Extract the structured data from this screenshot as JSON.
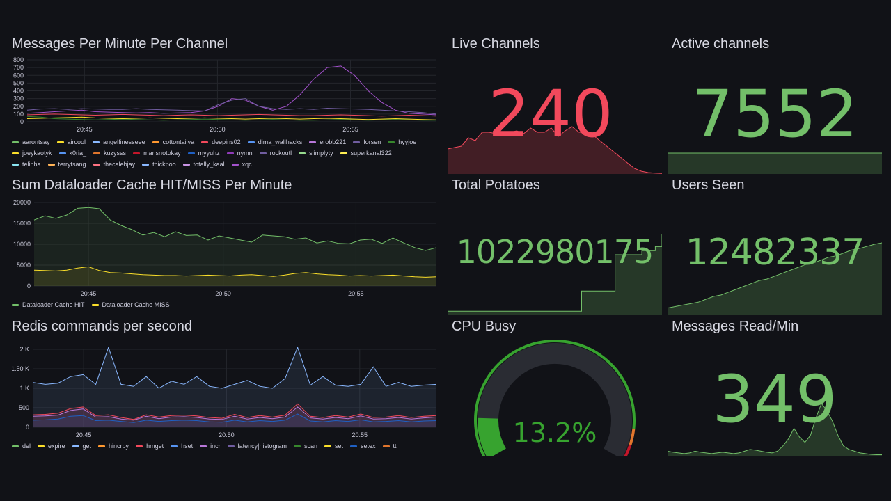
{
  "colors": {
    "background": "#111217",
    "grid": "#24262c",
    "text": "#ccccdc",
    "green": "#73bf69",
    "red": "#f2495c",
    "yellow": "#fade2a",
    "gauge_track": "#2a2c33",
    "gauge_green": "#37a32f",
    "gauge_orange": "#e0752d",
    "gauge_red": "#c4162a"
  },
  "panels": {
    "messages_per_minute": {
      "title": "Messages Per Minute Per Channel",
      "legend": [
        {
          "name": "aarontsay",
          "color": "#73bf69"
        },
        {
          "name": "aircool",
          "color": "#fade2a"
        },
        {
          "name": "angelfinesseee",
          "color": "#8ab8ff"
        },
        {
          "name": "cottontailva",
          "color": "#ff9830"
        },
        {
          "name": "deepins02",
          "color": "#f2495c"
        },
        {
          "name": "dima_wallhacks",
          "color": "#5794f2"
        },
        {
          "name": "erobb221",
          "color": "#b877d9"
        },
        {
          "name": "forsen",
          "color": "#705da0"
        },
        {
          "name": "hyyjoe",
          "color": "#37872d"
        },
        {
          "name": "joeykaotyk",
          "color": "#fade2a"
        },
        {
          "name": "k0ria_",
          "color": "#5794f2"
        },
        {
          "name": "kuzysss",
          "color": "#e0752d"
        },
        {
          "name": "marisnotokay",
          "color": "#c4162a"
        },
        {
          "name": "myyuhz",
          "color": "#1f60c4"
        },
        {
          "name": "nymn",
          "color": "#8f3bb8"
        },
        {
          "name": "rockoutl",
          "color": "#705da0"
        },
        {
          "name": "slimplyty",
          "color": "#96d98d"
        },
        {
          "name": "superkanal322",
          "color": "#ffee52"
        },
        {
          "name": "telinha",
          "color": "#8ae5f2"
        },
        {
          "name": "terrytsang",
          "color": "#ffb357"
        },
        {
          "name": "thecalebjay",
          "color": "#ff7383"
        },
        {
          "name": "thickpoo",
          "color": "#8ab8ff"
        },
        {
          "name": "totally_kaal",
          "color": "#ca95e5"
        },
        {
          "name": "xqc",
          "color": "#a352cc"
        }
      ]
    },
    "dataloader_cache": {
      "title": "Sum Dataloader Cache HIT/MISS Per Minute",
      "legend": [
        {
          "name": "Dataloader Cache HIT",
          "color": "#73bf69"
        },
        {
          "name": "Dataloader Cache MISS",
          "color": "#fade2a"
        }
      ]
    },
    "redis_commands": {
      "title": "Redis commands per second",
      "legend": [
        {
          "name": "del",
          "color": "#73bf69"
        },
        {
          "name": "expire",
          "color": "#fade2a"
        },
        {
          "name": "get",
          "color": "#8ab8ff"
        },
        {
          "name": "hincrby",
          "color": "#ff9830"
        },
        {
          "name": "hmget",
          "color": "#f2495c"
        },
        {
          "name": "hset",
          "color": "#5794f2"
        },
        {
          "name": "incr",
          "color": "#b877d9"
        },
        {
          "name": "latency|histogram",
          "color": "#705da0"
        },
        {
          "name": "scan",
          "color": "#37872d"
        },
        {
          "name": "set",
          "color": "#fade2a"
        },
        {
          "name": "setex",
          "color": "#1f60c4"
        },
        {
          "name": "ttl",
          "color": "#e0752d"
        }
      ]
    },
    "live_channels": {
      "title": "Live Channels",
      "value": "240",
      "color": "#f2495c"
    },
    "active_channels": {
      "title": "Active channels",
      "value": "7552",
      "color": "#73bf69"
    },
    "total_potatoes": {
      "title": "Total Potatoes",
      "value": "1022980175",
      "color": "#73bf69"
    },
    "users_seen": {
      "title": "Users Seen",
      "value": "12482337",
      "color": "#73bf69"
    },
    "cpu_busy": {
      "title": "CPU Busy",
      "value": "13.2%",
      "percent": 13.2,
      "color": "#37a32f"
    },
    "messages_read": {
      "title": "Messages Read/Min",
      "value": "349",
      "color": "#73bf69"
    }
  },
  "chart_data": [
    {
      "type": "line",
      "title": "Messages Per Minute Per Channel",
      "x_ticks": [
        "20:45",
        "20:50",
        "20:55"
      ],
      "y_ticks": [
        "0",
        "100",
        "200",
        "300",
        "400",
        "500",
        "600",
        "700",
        "800"
      ],
      "ylim": [
        0,
        800
      ],
      "x": [
        0,
        1,
        2,
        3,
        4,
        5,
        6,
        7,
        8,
        9,
        10,
        11,
        12,
        13,
        14,
        15,
        16,
        17,
        18,
        19,
        20,
        21,
        22,
        23,
        24,
        25,
        26,
        27,
        28,
        29,
        30
      ],
      "series": [
        {
          "name": "xqc",
          "values": [
            110,
            120,
            130,
            140,
            150,
            130,
            125,
            120,
            115,
            120,
            110,
            115,
            120,
            140,
            200,
            300,
            280,
            200,
            150,
            200,
            350,
            550,
            700,
            720,
            600,
            400,
            250,
            150,
            110,
            100,
            90
          ]
        },
        {
          "name": "forsen",
          "values": [
            150,
            165,
            170,
            160,
            170,
            165,
            160,
            160,
            170,
            160,
            155,
            150,
            145,
            140,
            220,
            280,
            300,
            200,
            170,
            160,
            170,
            160,
            175,
            170,
            165,
            160,
            150,
            140,
            130,
            120,
            100
          ]
        },
        {
          "name": "deepins02",
          "values": [
            90,
            95,
            100,
            95,
            90,
            85,
            90,
            95,
            90,
            85,
            80,
            85,
            90,
            85,
            80,
            85,
            90,
            95,
            90,
            85,
            80,
            80,
            85,
            90,
            85,
            80,
            75,
            80,
            85,
            80,
            75
          ]
        },
        {
          "name": "hyyjoe",
          "values": [
            70,
            60,
            40,
            35,
            30,
            25,
            30,
            35,
            30,
            25,
            20,
            25,
            30,
            35,
            30,
            25,
            20,
            25,
            30,
            25,
            20,
            20,
            25,
            30,
            25,
            20,
            25,
            30,
            25,
            20,
            20
          ]
        },
        {
          "name": "aircool",
          "values": [
            40,
            45,
            50,
            55,
            60,
            50,
            45,
            40,
            45,
            50,
            45,
            40,
            45,
            50,
            45,
            40,
            35,
            40,
            45,
            40,
            35,
            40,
            45,
            40,
            35,
            30,
            35,
            40,
            35,
            30,
            25
          ]
        }
      ]
    },
    {
      "type": "area",
      "title": "Sum Dataloader Cache HIT/MISS Per Minute",
      "x_ticks": [
        "20:45",
        "20:50",
        "20:55"
      ],
      "y_ticks": [
        "0",
        "5000",
        "10000",
        "15000",
        "20000"
      ],
      "ylim": [
        0,
        20000
      ],
      "series": [
        {
          "name": "Dataloader Cache HIT",
          "values": [
            15800,
            16800,
            16200,
            17000,
            18600,
            18800,
            18500,
            15800,
            14500,
            13500,
            12200,
            12800,
            11800,
            13000,
            12100,
            12200,
            11000,
            12000,
            11500,
            11000,
            10500,
            12200,
            12000,
            11800,
            11200,
            11500,
            10300,
            10800,
            10200,
            10100,
            11000,
            11200,
            10200,
            11500,
            10300,
            9200,
            8500,
            9200
          ]
        },
        {
          "name": "Dataloader Cache MISS",
          "values": [
            3800,
            3700,
            3600,
            3800,
            4300,
            4600,
            3700,
            3200,
            3100,
            2900,
            2700,
            2600,
            2500,
            2500,
            2400,
            2500,
            2600,
            2500,
            2400,
            2600,
            2700,
            2500,
            2300,
            2600,
            3000,
            3200,
            2900,
            2700,
            2600,
            2400,
            2500,
            2400,
            2500,
            2600,
            2400,
            2200,
            2100,
            2200
          ]
        }
      ]
    },
    {
      "type": "area",
      "title": "Redis commands per second",
      "x_ticks": [
        "20:45",
        "20:50",
        "20:55"
      ],
      "y_ticks": [
        "0",
        "500",
        "1 K",
        "1.50 K",
        "2 K"
      ],
      "ylim": [
        0,
        2000
      ],
      "series": [
        {
          "name": "get",
          "values": [
            1150,
            1100,
            1130,
            1300,
            1350,
            1100,
            2050,
            1100,
            1050,
            1300,
            1000,
            1180,
            1100,
            1300,
            1050,
            1000,
            1100,
            1200,
            1050,
            1000,
            1250,
            2050,
            1080,
            1300,
            1080,
            1050,
            1100,
            1550,
            1050,
            1150,
            1050,
            1080,
            1100
          ]
        },
        {
          "name": "hmget",
          "values": [
            320,
            330,
            360,
            480,
            520,
            300,
            320,
            250,
            200,
            320,
            260,
            300,
            310,
            290,
            250,
            230,
            330,
            250,
            300,
            260,
            310,
            600,
            280,
            250,
            300,
            260,
            340,
            250,
            260,
            300,
            250,
            280,
            300
          ]
        },
        {
          "name": "incr",
          "values": [
            280,
            290,
            310,
            430,
            470,
            260,
            270,
            210,
            180,
            280,
            220,
            260,
            270,
            250,
            210,
            200,
            280,
            210,
            250,
            220,
            260,
            520,
            240,
            210,
            250,
            220,
            290,
            210,
            220,
            250,
            210,
            240,
            260
          ]
        },
        {
          "name": "setex",
          "values": [
            180,
            190,
            210,
            280,
            300,
            170,
            180,
            150,
            120,
            180,
            150,
            170,
            180,
            170,
            140,
            130,
            180,
            140,
            170,
            150,
            180,
            340,
            160,
            140,
            170,
            150,
            190,
            140,
            150,
            170,
            140,
            160,
            170
          ]
        }
      ]
    },
    {
      "type": "area",
      "title": "Live Channels",
      "values": [
        90,
        95,
        100,
        130,
        120,
        150,
        150,
        145,
        150,
        150,
        155,
        145,
        165,
        150,
        150,
        165,
        135,
        155,
        170,
        150,
        150,
        140,
        120,
        100,
        80,
        60,
        40,
        20,
        10,
        5,
        3,
        2
      ]
    },
    {
      "type": "area",
      "title": "Active channels",
      "values": [
        100,
        100,
        100,
        100,
        100,
        100,
        100,
        100,
        100,
        100,
        100,
        100,
        100,
        100,
        100,
        100,
        100,
        100,
        100,
        100
      ]
    },
    {
      "type": "area",
      "title": "Total Potatoes",
      "values": [
        5,
        5,
        5,
        5,
        5,
        5,
        5,
        5,
        5,
        5,
        5,
        5,
        5,
        5,
        5,
        5,
        5,
        5,
        5,
        5,
        30,
        30,
        30,
        30,
        30,
        75,
        75,
        75,
        75,
        80,
        80,
        85,
        100
      ]
    },
    {
      "type": "area",
      "title": "Users Seen",
      "values": [
        10,
        12,
        14,
        16,
        18,
        22,
        26,
        28,
        32,
        36,
        40,
        44,
        48,
        50,
        54,
        58,
        62,
        66,
        70,
        72,
        76,
        80,
        82,
        86,
        90,
        92,
        95,
        98,
        100
      ]
    },
    {
      "type": "area",
      "title": "Messages Read/Min",
      "values": [
        15,
        12,
        10,
        8,
        10,
        15,
        12,
        10,
        8,
        10,
        12,
        10,
        8,
        10,
        15,
        20,
        18,
        15,
        12,
        10,
        15,
        30,
        50,
        80,
        55,
        40,
        60,
        110,
        150,
        130,
        100,
        60,
        30,
        20,
        15,
        10,
        8,
        6,
        5,
        5
      ]
    }
  ]
}
